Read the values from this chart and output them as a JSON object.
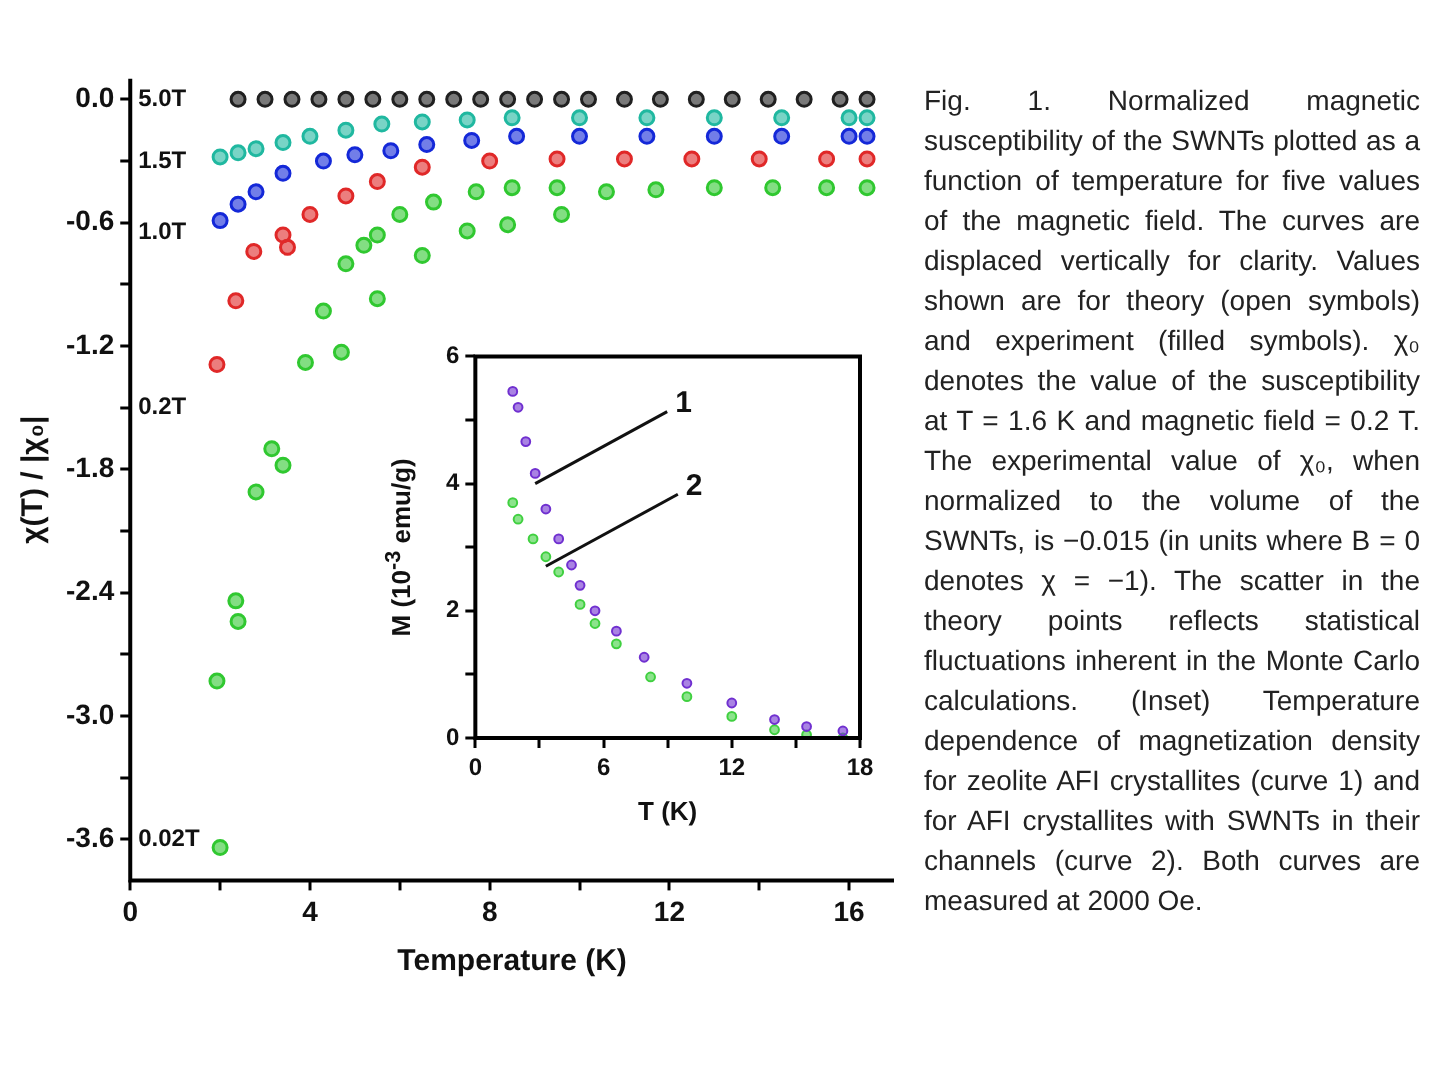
{
  "chart_data": [
    {
      "type": "scatter",
      "xlabel": "Temperature (K)",
      "ylabel": "χ(T) / |χ₀|",
      "xlim": [
        0,
        17
      ],
      "ylim": [
        -3.8,
        0.1
      ],
      "marker": "circle",
      "grid": false,
      "legend": false,
      "xticks": [
        0,
        {
          "value": 2,
          "label": null
        },
        4,
        {
          "value": 6,
          "label": null
        },
        8,
        {
          "value": 10,
          "label": null
        },
        12,
        {
          "value": 14,
          "label": null
        },
        16
      ],
      "yticks": [
        {
          "value": 0,
          "label": "0.0"
        },
        {
          "value": -0.3,
          "label": null
        },
        -0.6,
        {
          "value": -0.9,
          "label": null
        },
        -1.2,
        {
          "value": -1.5,
          "label": null
        },
        -1.8,
        {
          "value": -2.1,
          "label": null
        },
        -2.4,
        {
          "value": -2.7,
          "label": null
        },
        {
          "value": -3,
          "label": "-3.0"
        },
        {
          "value": -3.3,
          "label": null
        },
        -3.6
      ],
      "annotations": [
        "5.0T",
        "1.5T",
        "1.0T",
        "0.2T",
        "0.02T"
      ],
      "series": [
        {
          "color": "#202020",
          "x": [
            2.4,
            3.0,
            3.6,
            4.2,
            4.8,
            5.4,
            6.0,
            6.6,
            7.2,
            7.8,
            8.4,
            9.0,
            9.6,
            10.2,
            11.0,
            11.8,
            12.6,
            13.4,
            14.2,
            15.0,
            15.8,
            16.4
          ],
          "values": [
            0,
            0,
            0,
            0,
            0,
            0,
            0,
            0,
            0,
            0,
            0,
            0,
            0,
            0,
            0,
            0,
            0,
            0,
            0,
            0,
            0,
            0
          ]
        },
        {
          "color": "#20b8a0",
          "x": [
            2.0,
            2.4,
            2.8,
            3.4,
            4.0,
            4.8,
            5.6,
            6.5,
            7.5,
            8.5,
            10.0,
            11.5,
            13.0,
            14.5,
            16.0,
            16.4
          ],
          "values": [
            -0.28,
            -0.26,
            -0.24,
            -0.21,
            -0.18,
            -0.15,
            -0.12,
            -0.11,
            -0.1,
            -0.09,
            -0.09,
            -0.09,
            -0.09,
            -0.09,
            -0.09,
            -0.09
          ]
        },
        {
          "color": "#1428d8",
          "x": [
            2.0,
            2.4,
            2.8,
            3.4,
            4.3,
            5.0,
            5.8,
            6.6,
            7.6,
            8.6,
            10.0,
            11.5,
            13.0,
            14.5,
            16.0,
            16.4
          ],
          "values": [
            -0.59,
            -0.51,
            -0.45,
            -0.36,
            -0.3,
            -0.27,
            -0.25,
            -0.22,
            -0.2,
            -0.18,
            -0.18,
            -0.18,
            -0.18,
            -0.18,
            -0.18,
            -0.18
          ]
        },
        {
          "color": "#e02828",
          "x": [
            1.93,
            2.35,
            2.75,
            3.4,
            3.5,
            4.0,
            4.8,
            5.5,
            6.5,
            8.0,
            9.5,
            11.0,
            12.5,
            14.0,
            15.5,
            16.4
          ],
          "values": [
            -1.29,
            -0.98,
            -0.74,
            -0.66,
            -0.72,
            -0.56,
            -0.47,
            -0.4,
            -0.33,
            -0.3,
            -0.29,
            -0.29,
            -0.29,
            -0.29,
            -0.29,
            -0.29
          ]
        },
        {
          "color": "#30c830",
          "x": [
            3.9,
            4.3,
            4.8,
            5.2,
            5.5,
            6.0,
            6.75,
            7.7,
            8.5,
            9.5,
            10.6,
            11.7,
            13.0,
            14.3,
            15.5,
            16.4
          ],
          "values": [
            -1.28,
            -1.03,
            -0.8,
            -0.71,
            -0.66,
            -0.56,
            -0.5,
            -0.45,
            -0.43,
            -0.43,
            -0.45,
            -0.44,
            -0.43,
            -0.43,
            -0.43,
            -0.43
          ]
        },
        {
          "color": "#30c830",
          "x": [
            4.7,
            5.5,
            6.5,
            7.5,
            8.4,
            9.6
          ],
          "values": [
            -1.23,
            -0.97,
            -0.76,
            -0.64,
            -0.61,
            -0.56
          ]
        },
        {
          "color": "#30c830",
          "x": [
            3.15,
            3.4,
            2.8,
            2.35,
            2.4,
            1.93,
            2.0
          ],
          "values": [
            -1.7,
            -1.78,
            -1.91,
            -2.44,
            -2.54,
            -2.83,
            -3.64
          ]
        }
      ]
    },
    {
      "type": "scatter",
      "xlabel": "T (K)",
      "ylabel": "M (10$^{-3}$ emu/g)",
      "xlim": [
        0,
        18
      ],
      "ylim": [
        0,
        6
      ],
      "marker": "circle",
      "grid": false,
      "legend": false,
      "xticks": [
        0,
        {
          "value": 3,
          "label": null
        },
        6,
        {
          "value": 9,
          "label": null
        },
        12,
        {
          "value": 15,
          "label": null
        },
        18
      ],
      "yticks": [
        0,
        {
          "value": 1,
          "label": null
        },
        2,
        {
          "value": 3,
          "label": null
        },
        4,
        {
          "value": 5,
          "label": null
        },
        6
      ],
      "annotations": [
        {
          "text": "1",
          "x": 2.8,
          "y": 4.0
        },
        {
          "text": "2",
          "x": 3.3,
          "y": 2.7
        }
      ],
      "series": [
        {
          "color": "#7030d0",
          "x": [
            1.75,
            2.0,
            2.36,
            2.8,
            3.3,
            3.9,
            4.5,
            4.9,
            5.6,
            6.6,
            7.9,
            9.9,
            12.0,
            14.0,
            15.5,
            17.2
          ],
          "values": [
            5.45,
            5.2,
            4.66,
            4.16,
            3.6,
            3.13,
            2.72,
            2.4,
            2.0,
            1.68,
            1.27,
            0.86,
            0.55,
            0.29,
            0.18,
            0.11
          ]
        },
        {
          "color": "#40d040",
          "x": [
            1.75,
            2.0,
            2.7,
            3.3,
            3.9,
            4.9,
            5.6,
            6.6,
            8.2,
            9.9,
            12.0,
            14.0,
            15.5,
            17.2
          ],
          "values": [
            3.7,
            3.44,
            3.13,
            2.85,
            2.61,
            2.1,
            1.8,
            1.48,
            0.96,
            0.65,
            0.34,
            0.13,
            0.05,
            0.0
          ]
        }
      ]
    },
    {
      "type": "other",
      "annotations": [
        "Fig. 1. Normalized magnetic susceptibility of the SWNTs plotted as a function of temperature for five values of the magnetic field. The curves are displaced vertically for clarity. Values shown are for theory (open symbols) and experiment (filled symbols). χ₀ denotes the value of the susceptibility at T = 1.6 K and magnetic field = 0.2 T. The experimental value of χ₀, when normalized to the volume of the SWNTs, is −0.015 (in units where B = 0 denotes χ = −1). The scatter in the theory points reflects statistical fluctuations inherent in the Monte Carlo calculations. (Inset) Temperature dependence of magnetization density for zeolite AFI crystallites (curve 1) and for AFI crystallites with SWNTs in their channels (curve 2). Both curves are measured at 2000 Oe."
      ]
    }
  ]
}
